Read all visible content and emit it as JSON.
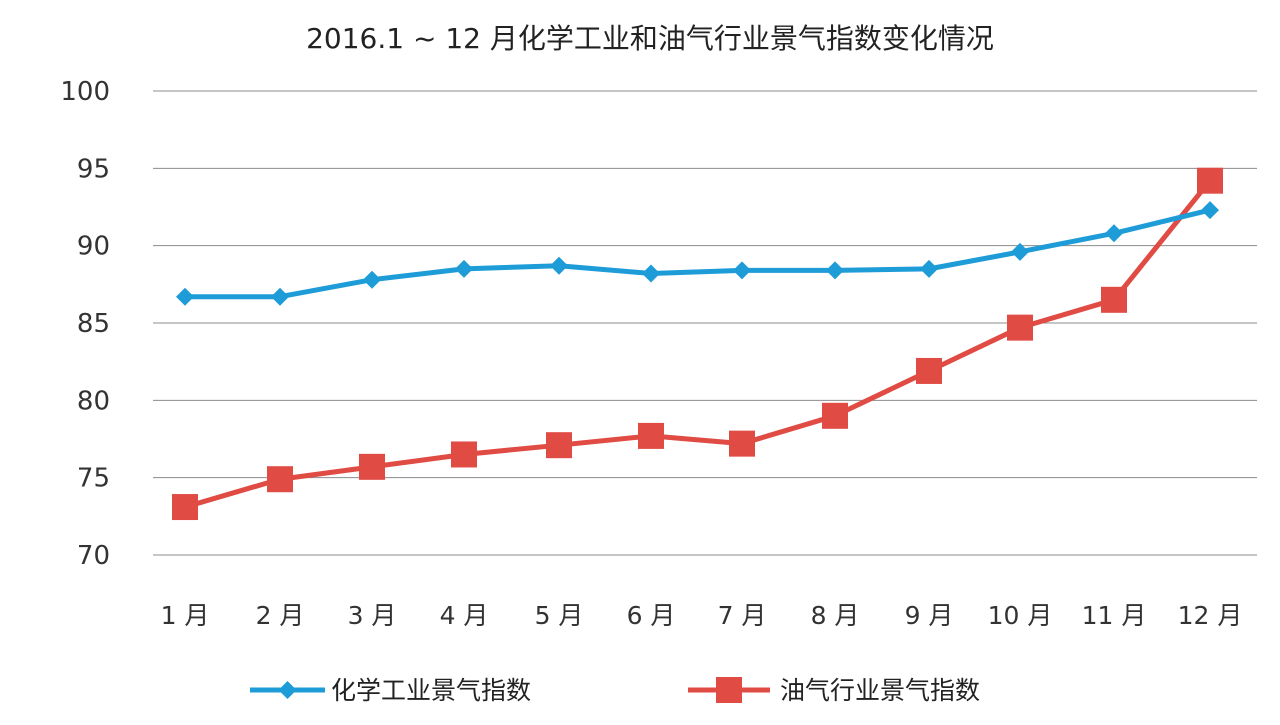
{
  "chart_data": {
    "type": "line",
    "title": "2016.1 ~ 12 月化学工业和油气行业景气指数变化情况",
    "xlabel": "",
    "ylabel": "",
    "ylim": [
      70,
      100
    ],
    "yticks": [
      100,
      95,
      90,
      85,
      80,
      75,
      70
    ],
    "grid": true,
    "legend_position": "bottom",
    "categories": [
      "1 月",
      "2 月",
      "3 月",
      "4 月",
      "5 月",
      "6 月",
      "7 月",
      "8 月",
      "9 月",
      "10 月",
      "11 月",
      "12 月"
    ],
    "series": [
      {
        "name": "化学工业景气指数",
        "color": "#1e9cd7",
        "marker": "diamond",
        "values": [
          86.7,
          86.7,
          87.8,
          88.5,
          88.7,
          88.2,
          88.4,
          88.4,
          88.5,
          89.6,
          90.8,
          92.3
        ]
      },
      {
        "name": "油气行业景气指数",
        "color": "#e04b44",
        "marker": "square",
        "values": [
          73.1,
          74.9,
          75.7,
          76.5,
          77.1,
          77.7,
          77.2,
          79.0,
          81.9,
          84.7,
          86.5,
          94.2
        ]
      }
    ]
  }
}
